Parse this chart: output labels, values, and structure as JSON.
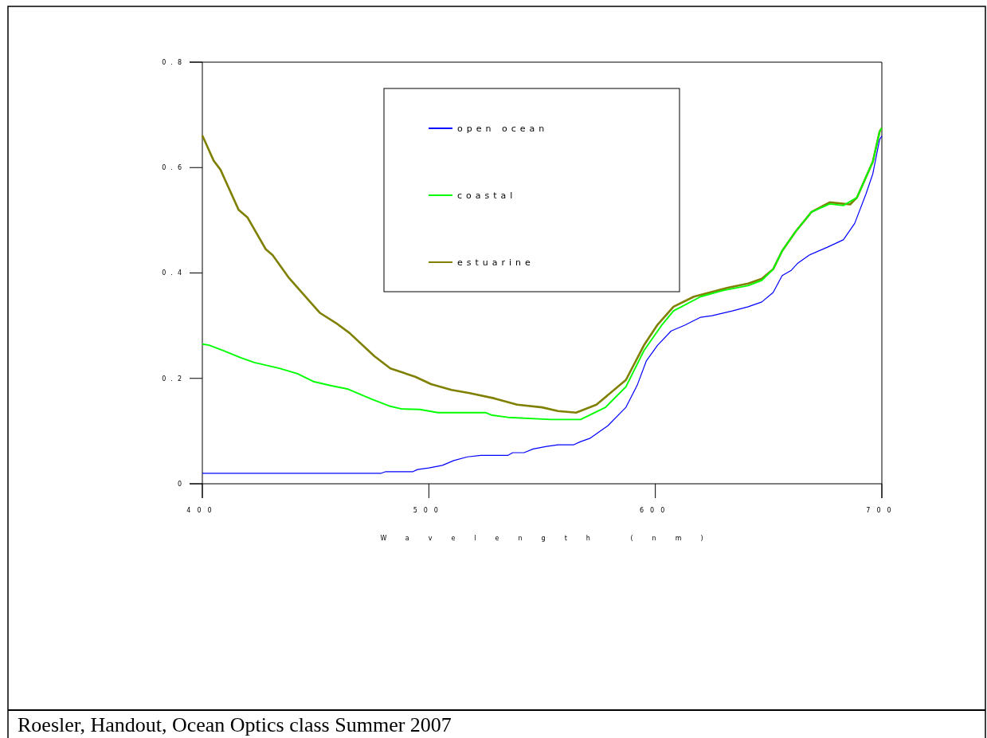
{
  "chart_data": {
    "type": "line",
    "xlabel": "Wavelength (nm)",
    "xlim": [
      400,
      700
    ],
    "ylim": [
      0,
      0.8
    ],
    "xticks": [
      400,
      500,
      600,
      700
    ],
    "yticks": [
      0,
      0.2,
      0.4,
      0.6,
      0.8
    ],
    "grid": false,
    "legend": "top",
    "marker": "none",
    "line_style": "solid",
    "annotations": [
      "Roesler, Handout, Ocean Optics class Summer 2007"
    ],
    "series": [
      {
        "name": "open ocean",
        "color": "#0000ff",
        "x": [
          400,
          479,
          481,
          493,
          495,
          500,
          506,
          511,
          517,
          523,
          535,
          537,
          542,
          546,
          552,
          557,
          564,
          567,
          571,
          575,
          579,
          587,
          592,
          596,
          601,
          607,
          613,
          620,
          625,
          634,
          641,
          647,
          652,
          656,
          660,
          663,
          668,
          676,
          683,
          688,
          693,
          696,
          699,
          700
        ],
        "values": [
          0.02,
          0.02,
          0.023,
          0.023,
          0.027,
          0.03,
          0.035,
          0.044,
          0.051,
          0.054,
          0.054,
          0.059,
          0.059,
          0.066,
          0.071,
          0.074,
          0.074,
          0.08,
          0.086,
          0.098,
          0.11,
          0.145,
          0.187,
          0.233,
          0.263,
          0.29,
          0.301,
          0.316,
          0.319,
          0.328,
          0.336,
          0.345,
          0.363,
          0.395,
          0.405,
          0.419,
          0.434,
          0.449,
          0.463,
          0.494,
          0.55,
          0.588,
          0.653,
          0.66
        ]
      },
      {
        "name": "coastal",
        "color": "#00ff00",
        "x": [
          400,
          403,
          409,
          417,
          423,
          434,
          442,
          449,
          457,
          464,
          475,
          483,
          488,
          496,
          504,
          525,
          528,
          535,
          554,
          567,
          578,
          587,
          595,
          603,
          608,
          620,
          630,
          641,
          647,
          652,
          656,
          662,
          669,
          677,
          683,
          689,
          693,
          696,
          699,
          700
        ],
        "values": [
          0.265,
          0.263,
          0.253,
          0.239,
          0.23,
          0.219,
          0.209,
          0.194,
          0.186,
          0.18,
          0.16,
          0.147,
          0.142,
          0.141,
          0.135,
          0.135,
          0.13,
          0.126,
          0.122,
          0.122,
          0.145,
          0.184,
          0.253,
          0.302,
          0.328,
          0.355,
          0.367,
          0.376,
          0.386,
          0.407,
          0.442,
          0.479,
          0.516,
          0.531,
          0.528,
          0.543,
          0.582,
          0.611,
          0.668,
          0.675
        ]
      },
      {
        "name": "estuarine",
        "color": "#808000",
        "x": [
          400,
          405,
          408,
          416,
          420,
          428,
          431,
          438,
          448,
          452,
          459,
          465,
          476,
          483,
          494,
          501,
          510,
          518,
          529,
          539,
          550,
          557,
          565,
          574,
          587,
          595,
          601,
          608,
          617,
          624,
          632,
          641,
          647,
          652,
          656,
          662,
          669,
          677,
          686,
          689,
          693,
          696,
          699,
          700
        ],
        "values": [
          0.661,
          0.613,
          0.596,
          0.52,
          0.505,
          0.445,
          0.434,
          0.392,
          0.343,
          0.324,
          0.305,
          0.286,
          0.242,
          0.219,
          0.203,
          0.189,
          0.178,
          0.172,
          0.162,
          0.15,
          0.145,
          0.138,
          0.135,
          0.15,
          0.197,
          0.263,
          0.302,
          0.336,
          0.355,
          0.363,
          0.372,
          0.38,
          0.389,
          0.407,
          0.442,
          0.479,
          0.516,
          0.534,
          0.53,
          0.543,
          0.582,
          0.611,
          0.668,
          0.675
        ]
      }
    ]
  }
}
